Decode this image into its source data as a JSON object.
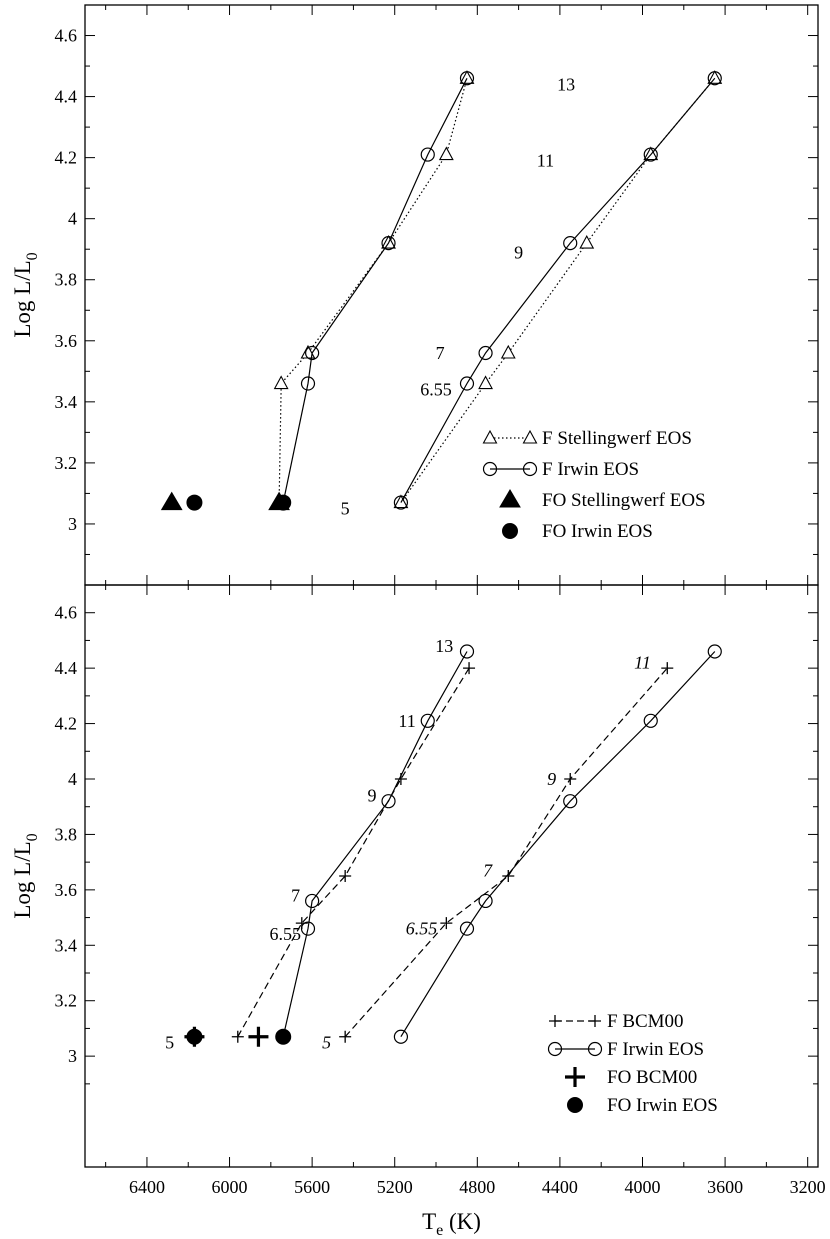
{
  "chart_data": [
    {
      "type": "line",
      "panel": "top",
      "title": "",
      "xlabel": "T_e (K)",
      "ylabel": "Log L/L_0",
      "xlim": [
        6700,
        3150
      ],
      "ylim": [
        2.8,
        4.7
      ],
      "x_reversed": true,
      "x_ticks": [
        6400,
        6000,
        5600,
        5200,
        4800,
        4400,
        4000,
        3600,
        3200
      ],
      "y_ticks": [
        3,
        3.2,
        3.4,
        3.6,
        3.8,
        4,
        4.2,
        4.4,
        4.6
      ],
      "grid": false,
      "legend_position": "bottom-right",
      "series": [
        {
          "name": "F Stellingwerf EOS",
          "style": "dotted",
          "marker": "open-triangle",
          "line": true,
          "x": [
            5760,
            5750,
            5620,
            5230,
            4950,
            4850
          ],
          "y": [
            3.07,
            3.46,
            3.56,
            3.92,
            4.21,
            4.46
          ]
        },
        {
          "name": "F Stellingwerf EOS",
          "style": "dotted",
          "marker": "open-triangle",
          "line": true,
          "legend": false,
          "x": [
            5170,
            4760,
            4650,
            4270,
            3960,
            3650
          ],
          "y": [
            3.07,
            3.46,
            3.56,
            3.92,
            4.21,
            4.46
          ]
        },
        {
          "name": "F Irwin EOS",
          "style": "solid",
          "marker": "open-circle",
          "line": true,
          "x": [
            5740,
            5620,
            5600,
            5230,
            5040,
            4850
          ],
          "y": [
            3.07,
            3.46,
            3.56,
            3.92,
            4.21,
            4.46
          ]
        },
        {
          "name": "F Irwin EOS",
          "style": "solid",
          "marker": "open-circle",
          "line": true,
          "legend": false,
          "x": [
            5170,
            4850,
            4760,
            4350,
            3960,
            3650
          ],
          "y": [
            3.07,
            3.46,
            3.56,
            3.92,
            4.21,
            4.46
          ]
        },
        {
          "name": "FO Stellingwerf EOS",
          "style": "none",
          "marker": "filled-triangle",
          "line": false,
          "x": [
            6280,
            5760
          ],
          "y": [
            3.07,
            3.07
          ]
        },
        {
          "name": "FO Irwin EOS",
          "style": "none",
          "marker": "filled-circle",
          "line": false,
          "x": [
            6170,
            5740
          ],
          "y": [
            3.07,
            3.07
          ]
        }
      ],
      "annotations": [
        {
          "text": "13",
          "x": 4370,
          "y": 4.44,
          "italic": false
        },
        {
          "text": "11",
          "x": 4470,
          "y": 4.19,
          "italic": false
        },
        {
          "text": "9",
          "x": 4600,
          "y": 3.89,
          "italic": false
        },
        {
          "text": "7",
          "x": 4980,
          "y": 3.56,
          "italic": false
        },
        {
          "text": "6.55",
          "x": 5000,
          "y": 3.44,
          "italic": false
        },
        {
          "text": "5",
          "x": 5440,
          "y": 3.05,
          "italic": false
        }
      ]
    },
    {
      "type": "line",
      "panel": "bottom",
      "title": "",
      "xlabel": "T_e (K)",
      "ylabel": "Log L/L_0",
      "xlim": [
        6700,
        3150
      ],
      "ylim": [
        2.6,
        4.7
      ],
      "x_reversed": true,
      "x_ticks": [
        6400,
        6000,
        5600,
        5200,
        4800,
        4400,
        4000,
        3600,
        3200
      ],
      "y_ticks": [
        3,
        3.2,
        3.4,
        3.6,
        3.8,
        4,
        4.2,
        4.4,
        4.6
      ],
      "grid": false,
      "legend_position": "bottom-right",
      "series": [
        {
          "name": "F BCM00",
          "style": "dashed",
          "marker": "plus",
          "line": true,
          "x": [
            5960,
            5650,
            5440,
            5170,
            4840
          ],
          "y": [
            3.07,
            3.48,
            3.65,
            4.0,
            4.4
          ]
        },
        {
          "name": "F BCM00",
          "style": "dashed",
          "marker": "plus",
          "line": true,
          "legend": false,
          "x": [
            5440,
            4950,
            4650,
            4350,
            3880
          ],
          "y": [
            3.07,
            3.48,
            3.65,
            4.0,
            4.4
          ]
        },
        {
          "name": "F Irwin EOS",
          "style": "solid",
          "marker": "open-circle",
          "line": true,
          "x": [
            5740,
            5620,
            5600,
            5230,
            5040,
            4850
          ],
          "y": [
            3.07,
            3.46,
            3.56,
            3.92,
            4.21,
            4.46
          ]
        },
        {
          "name": "F Irwin EOS",
          "style": "solid",
          "marker": "open-circle",
          "line": true,
          "legend": false,
          "x": [
            5170,
            4850,
            4760,
            4350,
            3960,
            3650
          ],
          "y": [
            3.07,
            3.46,
            3.56,
            3.92,
            4.21,
            4.46
          ]
        },
        {
          "name": "FO BCM00",
          "style": "none",
          "marker": "bold-plus",
          "line": false,
          "x": [
            6170,
            5860
          ],
          "y": [
            3.07,
            3.07
          ]
        },
        {
          "name": "FO Irwin EOS",
          "style": "none",
          "marker": "filled-circle",
          "line": false,
          "x": [
            6170,
            5740
          ],
          "y": [
            3.07,
            3.07
          ]
        }
      ],
      "annotations": [
        {
          "text": "13",
          "x": 4960,
          "y": 4.48,
          "italic": false
        },
        {
          "text": "11",
          "x": 5140,
          "y": 4.21,
          "italic": false
        },
        {
          "text": "9",
          "x": 5310,
          "y": 3.94,
          "italic": false
        },
        {
          "text": "7",
          "x": 5680,
          "y": 3.58,
          "italic": false
        },
        {
          "text": "6.55",
          "x": 5730,
          "y": 3.44,
          "italic": false
        },
        {
          "text": "5",
          "x": 6290,
          "y": 3.05,
          "italic": false
        },
        {
          "text": "11",
          "x": 4000,
          "y": 4.42,
          "italic": true
        },
        {
          "text": "9",
          "x": 4440,
          "y": 4.0,
          "italic": true
        },
        {
          "text": "7",
          "x": 4750,
          "y": 3.67,
          "italic": true
        },
        {
          "text": "6.55",
          "x": 5070,
          "y": 3.46,
          "italic": true
        },
        {
          "text": "5",
          "x": 5530,
          "y": 3.05,
          "italic": true
        }
      ]
    }
  ]
}
